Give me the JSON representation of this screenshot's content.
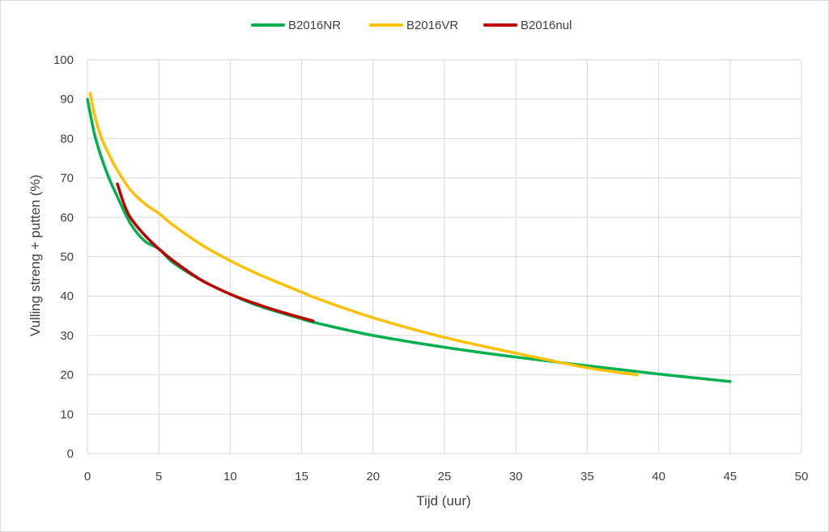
{
  "chart_data": {
    "type": "line",
    "title": "",
    "xlabel": "Tijd (uur)",
    "ylabel": "Vulling streng + putten (%)",
    "xlim": [
      0,
      50
    ],
    "ylim": [
      0,
      100
    ],
    "x_ticks": [
      0,
      5,
      10,
      15,
      20,
      25,
      30,
      35,
      40,
      45,
      50
    ],
    "y_ticks": [
      0,
      10,
      20,
      30,
      40,
      50,
      60,
      70,
      80,
      90,
      100
    ],
    "x_tick_labels": [
      "0",
      "5",
      "10",
      "15",
      "20",
      "25",
      "30",
      "35",
      "40",
      "45",
      "50"
    ],
    "y_tick_labels": [
      "0",
      "10",
      "20",
      "30",
      "40",
      "50",
      "60",
      "70",
      "80",
      "90",
      "100"
    ],
    "grid": true,
    "legend_position": "top",
    "series": [
      {
        "name": "B2016NR",
        "color": "#00b050",
        "x": [
          0,
          0.5,
          1,
          1.5,
          2,
          3,
          4,
          5,
          6,
          8,
          10,
          12,
          15,
          16,
          20,
          25,
          30,
          35,
          40,
          45
        ],
        "y": [
          90,
          81,
          75,
          70,
          66,
          58.5,
          54,
          52,
          48.5,
          44,
          40.5,
          37.5,
          34.2,
          33.2,
          30,
          27,
          24.5,
          22.3,
          20.2,
          18.3
        ]
      },
      {
        "name": "B2016VR",
        "color": "#ffc000",
        "x": [
          0.2,
          0.5,
          1,
          1.5,
          2,
          3,
          4,
          5,
          6,
          8,
          10,
          12,
          15,
          16,
          20,
          25,
          30,
          35,
          38.5
        ],
        "y": [
          91.5,
          86,
          80,
          76,
          72.5,
          67,
          63.5,
          61,
          58,
          53,
          49,
          45.5,
          41,
          39.5,
          34.5,
          29.5,
          25.5,
          21.8,
          20
        ]
      },
      {
        "name": "B2016nul",
        "color": "#c00000",
        "x": [
          2.1,
          2.5,
          3,
          4,
          5,
          6,
          8,
          10,
          12,
          14,
          15.8
        ],
        "y": [
          68.5,
          64,
          60,
          55.5,
          52,
          49,
          44,
          40.5,
          37.8,
          35.5,
          33.7
        ]
      }
    ]
  }
}
